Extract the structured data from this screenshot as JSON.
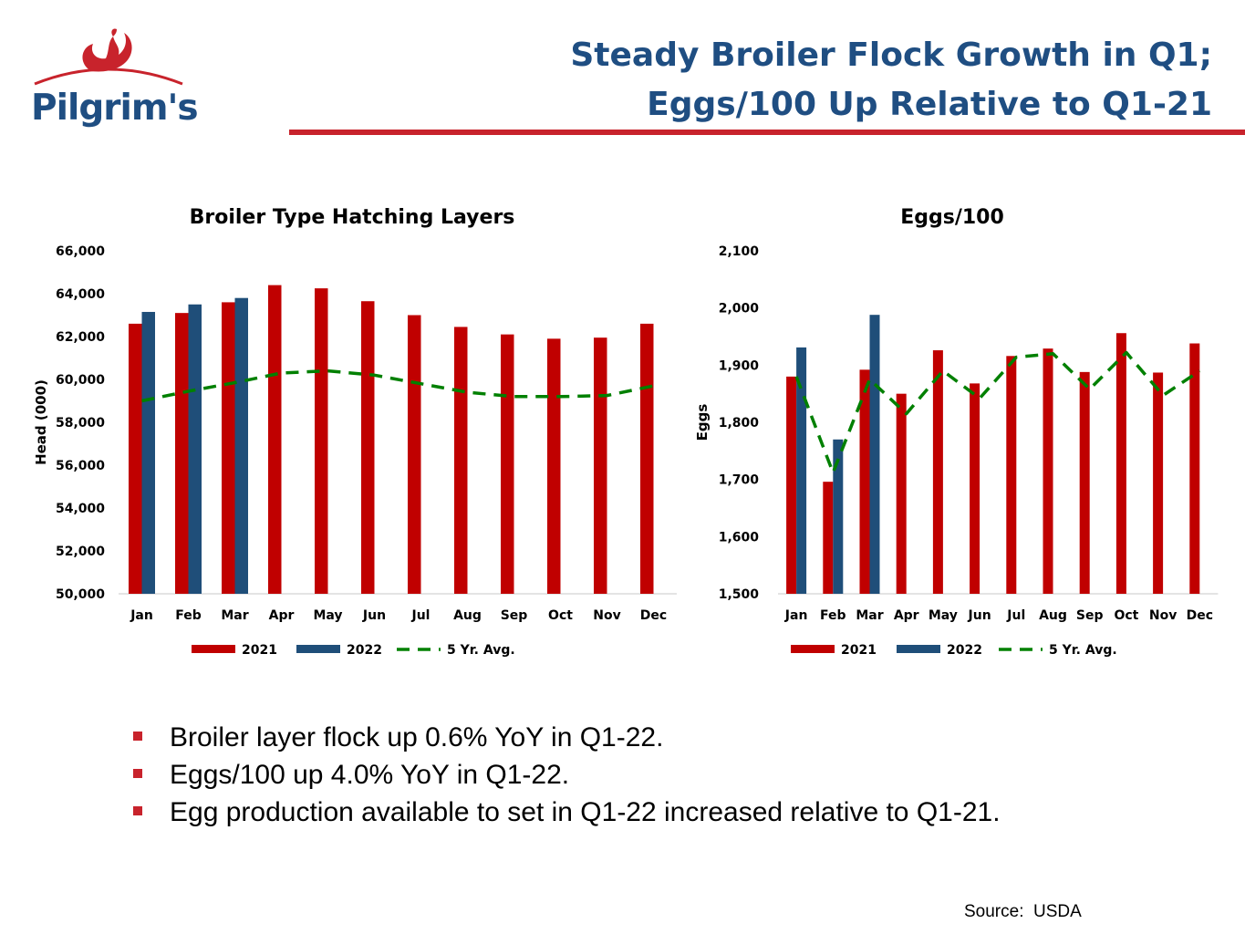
{
  "brand": {
    "name": "Pilgrim's",
    "colors": {
      "navy": "#1f4e82",
      "red": "#c8232c",
      "bar2021": "#c00000",
      "bar2022": "#1f4e79",
      "avg": "#008000"
    }
  },
  "header": {
    "title_line1": "Steady Broiler Flock Growth in Q1;",
    "title_line2": "Eggs/100 Up Relative to Q1-21"
  },
  "chart_data": [
    {
      "type": "bar",
      "title": "Broiler Type Hatching Layers",
      "ylabel": "Head (000)",
      "xlabel": "",
      "ylim": [
        50000,
        66000
      ],
      "ytick_step": 2000,
      "grid": false,
      "legend_position": "bottom",
      "categories": [
        "Jan",
        "Feb",
        "Mar",
        "Apr",
        "May",
        "Jun",
        "Jul",
        "Aug",
        "Sep",
        "Oct",
        "Nov",
        "Dec"
      ],
      "series": [
        {
          "name": "2021",
          "kind": "bar",
          "color": "#c00000",
          "values": [
            62600,
            63100,
            63600,
            64400,
            64250,
            63650,
            63000,
            62450,
            62100,
            61900,
            61950,
            62600
          ]
        },
        {
          "name": "2022",
          "kind": "bar",
          "color": "#1f4e79",
          "values": [
            63150,
            63500,
            63800,
            null,
            null,
            null,
            null,
            null,
            null,
            null,
            null,
            null
          ]
        },
        {
          "name": "5 Yr. Avg.",
          "kind": "line",
          "style": "dashed",
          "color": "#008000",
          "values": [
            59000,
            59450,
            59850,
            60300,
            60400,
            60200,
            59800,
            59400,
            59200,
            59200,
            59250,
            59700
          ]
        }
      ]
    },
    {
      "type": "bar",
      "title": "Eggs/100",
      "ylabel": "Eggs",
      "xlabel": "",
      "ylim": [
        1500,
        2100
      ],
      "ytick_step": 100,
      "grid": false,
      "legend_position": "bottom",
      "categories": [
        "Jan",
        "Feb",
        "Mar",
        "Apr",
        "May",
        "Jun",
        "Jul",
        "Aug",
        "Sep",
        "Oct",
        "Nov",
        "Dec"
      ],
      "series": [
        {
          "name": "2021",
          "kind": "bar",
          "color": "#c00000",
          "values": [
            1880,
            1696,
            1892,
            1850,
            1926,
            1868,
            1916,
            1929,
            1888,
            1956,
            1887,
            1938
          ]
        },
        {
          "name": "2022",
          "kind": "bar",
          "color": "#1f4e79",
          "values": [
            1931,
            1770,
            1988,
            null,
            null,
            null,
            null,
            null,
            null,
            null,
            null,
            null
          ]
        },
        {
          "name": "5 Yr. Avg.",
          "kind": "line",
          "style": "dashed",
          "color": "#008000",
          "values": [
            1880,
            1712,
            1875,
            1815,
            1890,
            1842,
            1914,
            1920,
            1858,
            1922,
            1847,
            1890
          ]
        }
      ]
    }
  ],
  "bullets": [
    "Broiler layer flock up 0.6% YoY in Q1-22.",
    "Eggs/100 up 4.0% YoY in Q1-22.",
    "Egg production available to set in Q1-22 increased relative to Q1-21."
  ],
  "source": "Source:  USDA"
}
